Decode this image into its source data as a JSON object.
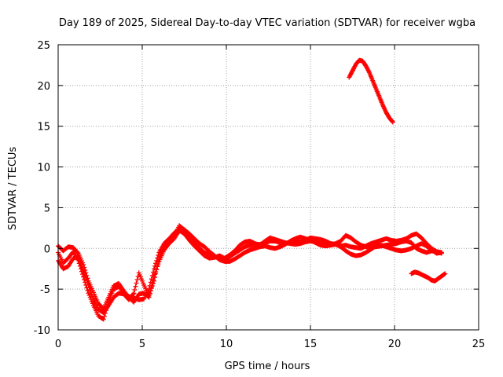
{
  "chart_data": {
    "type": "scatter",
    "title": "Day 189 of 2025, Sidereal Day-to-day VTEC variation (SDTVAR) for receiver wgba",
    "xlabel": "GPS time / hours",
    "ylabel": "SDTVAR / TECUs",
    "xlim": [
      0,
      25
    ],
    "ylim": [
      -10,
      25
    ],
    "xticks": [
      0,
      5,
      10,
      15,
      20,
      25
    ],
    "yticks": [
      -10,
      -5,
      0,
      5,
      10,
      15,
      20,
      25
    ],
    "grid": true,
    "legend": "none",
    "marker": "plus",
    "color": "#ff0000",
    "series": [
      {
        "name": "track-1",
        "x": [
          0.0,
          0.3,
          0.6,
          0.9,
          1.2,
          1.5,
          1.8,
          2.1,
          2.4,
          2.7,
          3.0,
          3.3,
          3.6,
          3.9,
          4.2,
          4.5,
          4.8,
          5.1,
          5.4,
          5.7,
          6.0,
          6.3,
          6.6,
          6.9,
          7.2,
          7.5,
          7.8,
          8.1,
          8.4,
          8.7,
          9.0,
          9.3,
          9.6,
          9.9,
          10.2,
          10.5,
          10.8,
          11.1,
          11.4,
          11.7,
          12.0,
          12.3,
          12.6,
          12.9,
          13.2,
          13.5,
          13.8,
          14.1,
          14.4,
          14.7,
          15.0,
          15.3,
          15.6,
          15.9,
          16.2,
          16.5,
          16.8,
          17.1,
          17.4,
          17.7,
          18.0,
          18.3,
          18.6,
          18.9,
          19.2,
          19.5,
          19.8,
          20.1,
          20.4,
          20.7,
          21.0,
          21.3,
          21.6,
          21.9,
          22.2,
          22.5,
          22.8
        ],
        "y": [
          -0.5,
          -1.8,
          -1.2,
          -0.4,
          -1.5,
          -3.5,
          -5.5,
          -7.0,
          -8.3,
          -8.7,
          -6.5,
          -5.0,
          -4.7,
          -5.4,
          -5.9,
          -6.1,
          -6.3,
          -6.2,
          -5.0,
          -2.5,
          -0.5,
          0.6,
          1.2,
          1.9,
          2.4,
          2.0,
          1.4,
          0.7,
          0.0,
          -0.5,
          -0.8,
          -1.0,
          -1.2,
          -1.4,
          -1.0,
          -0.6,
          -0.2,
          0.2,
          0.4,
          0.5,
          0.5,
          0.7,
          0.9,
          0.9,
          0.7,
          0.6,
          0.8,
          0.9,
          0.8,
          1.0,
          1.3,
          1.2,
          1.1,
          0.9,
          0.6,
          0.5,
          0.3,
          0.4,
          0.2,
          0.1,
          0.0,
          0.3,
          0.6,
          0.8,
          1.0,
          1.2,
          1.0,
          0.9,
          1.0,
          1.2,
          1.6,
          1.8,
          1.3,
          0.6,
          0.0,
          -0.4,
          -0.6
        ]
      },
      {
        "name": "track-2",
        "x": [
          0.0,
          0.3,
          0.6,
          0.9,
          1.2,
          1.5,
          1.8,
          2.1,
          2.4,
          2.7,
          3.0,
          3.3,
          3.6,
          3.9,
          4.2,
          4.5,
          4.8,
          5.1,
          5.4,
          5.7,
          6.0,
          6.3,
          6.6,
          6.9,
          7.2,
          7.5,
          7.8,
          8.1,
          8.4,
          8.7,
          9.0,
          9.3,
          9.6,
          9.9,
          10.2,
          10.5,
          10.8,
          11.1,
          11.4,
          11.7,
          12.0,
          12.3,
          12.6,
          12.9,
          13.2,
          13.5,
          13.8,
          14.1,
          14.4,
          14.7,
          15.0,
          15.3,
          15.6,
          15.9,
          16.2,
          16.5,
          16.8,
          17.1,
          17.4,
          17.7,
          18.0,
          18.3,
          18.6,
          18.9,
          19.2,
          19.5,
          19.8,
          20.1,
          20.4,
          20.7,
          21.0,
          21.3,
          21.6,
          21.9,
          22.2,
          22.5,
          22.8
        ],
        "y": [
          -1.5,
          -2.5,
          -2.2,
          -1.2,
          -1.0,
          -2.8,
          -4.5,
          -6.2,
          -7.5,
          -7.9,
          -7.0,
          -6.0,
          -5.5,
          -5.6,
          -6.3,
          -5.5,
          -3.0,
          -4.5,
          -5.8,
          -4.0,
          -1.2,
          0.0,
          0.8,
          1.5,
          2.8,
          2.3,
          1.8,
          1.2,
          0.6,
          0.2,
          -0.4,
          -0.9,
          -1.4,
          -1.6,
          -1.6,
          -1.3,
          -0.9,
          -0.5,
          -0.2,
          0.0,
          0.2,
          0.3,
          0.1,
          0.0,
          0.2,
          0.5,
          0.9,
          1.2,
          1.4,
          1.2,
          1.0,
          0.7,
          0.4,
          0.3,
          0.4,
          0.5,
          0.2,
          -0.3,
          -0.7,
          -0.9,
          -0.8,
          -0.5,
          -0.1,
          0.3,
          0.4,
          0.2,
          0.0,
          -0.2,
          -0.3,
          -0.2,
          0.0,
          0.3,
          0.6,
          0.3,
          -0.2,
          -0.6,
          -0.5
        ]
      },
      {
        "name": "track-3",
        "x": [
          0.0,
          0.3,
          0.6,
          0.9,
          1.2,
          1.5,
          1.8,
          2.1,
          2.4,
          2.7,
          3.0,
          3.3,
          3.6,
          3.9,
          4.2,
          4.5,
          4.8,
          5.1,
          5.4,
          5.7,
          6.0,
          6.3,
          6.6,
          6.9,
          7.2,
          7.5,
          7.8,
          8.1,
          8.4,
          8.7,
          9.0,
          9.3,
          9.6,
          9.9,
          10.2,
          10.5,
          10.8,
          11.1,
          11.4,
          11.7,
          12.0,
          12.3,
          12.6,
          12.9,
          13.2,
          13.5,
          13.8,
          14.1,
          14.4,
          14.7,
          15.0,
          15.3,
          15.6,
          15.9,
          16.2,
          16.5,
          16.8,
          17.1,
          17.4,
          17.7,
          18.0,
          18.3,
          18.6,
          18.9,
          19.2,
          19.5,
          19.8,
          20.1,
          20.4,
          20.7,
          21.0,
          21.3,
          21.6,
          21.9,
          22.2,
          22.5,
          22.8
        ],
        "y": [
          0.3,
          -0.3,
          0.2,
          0.1,
          -0.6,
          -2.0,
          -4.0,
          -5.4,
          -6.8,
          -7.4,
          -6.0,
          -4.6,
          -4.3,
          -5.2,
          -6.0,
          -6.6,
          -5.6,
          -5.5,
          -6.0,
          -3.5,
          -1.6,
          -0.2,
          0.6,
          1.2,
          2.2,
          1.8,
          1.0,
          0.3,
          -0.3,
          -0.9,
          -1.2,
          -1.1,
          -0.9,
          -1.2,
          -0.8,
          -0.3,
          0.4,
          0.8,
          0.9,
          0.6,
          0.4,
          0.9,
          1.3,
          1.1,
          0.9,
          0.7,
          0.6,
          0.5,
          0.6,
          0.8,
          0.9,
          0.8,
          0.6,
          0.5,
          0.4,
          0.6,
          0.9,
          1.6,
          1.3,
          0.8,
          0.4,
          0.2,
          0.1,
          0.2,
          0.3,
          0.4,
          0.5,
          0.6,
          0.8,
          0.9,
          0.7,
          0.0,
          -0.3,
          -0.5,
          -0.3,
          -0.4,
          -0.5
        ]
      },
      {
        "name": "track-4",
        "x": [
          17.3,
          17.5,
          17.7,
          17.9,
          18.1,
          18.3,
          18.5,
          18.7,
          18.9,
          19.1,
          19.3,
          19.5,
          19.7,
          19.9
        ],
        "y": [
          21.0,
          21.8,
          22.6,
          23.1,
          23.0,
          22.4,
          21.6,
          20.6,
          19.6,
          18.6,
          17.6,
          16.7,
          16.0,
          15.5
        ]
      },
      {
        "name": "track-5",
        "x": [
          21.0,
          21.2,
          21.4,
          21.6,
          21.8,
          22.0,
          22.2,
          22.4,
          22.6,
          22.8,
          23.0
        ],
        "y": [
          -3.1,
          -2.9,
          -3.0,
          -3.2,
          -3.4,
          -3.6,
          -3.9,
          -4.0,
          -3.7,
          -3.4,
          -3.1
        ]
      }
    ]
  }
}
